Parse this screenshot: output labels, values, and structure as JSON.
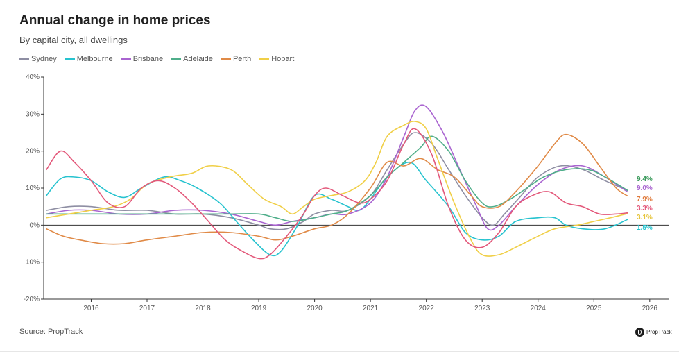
{
  "header": {
    "title": "Annual change in home prices",
    "subtitle": "By capital city, all dwellings"
  },
  "footer": {
    "source": "Source: PropTrack",
    "brand": "PropTrack",
    "brand_icon": "proptrack-logo-icon"
  },
  "chart_data": {
    "type": "line",
    "title": "Annual change in home prices",
    "subtitle": "By capital city, all dwellings",
    "xlabel": "",
    "ylabel": "",
    "xlim": [
      2015.15,
      2026.35
    ],
    "ylim": [
      -20,
      40
    ],
    "y_ticks": [
      -20,
      -10,
      0,
      10,
      20,
      30,
      40
    ],
    "y_tick_labels": [
      "-20%",
      "-10%",
      "0%",
      "10%",
      "20%",
      "30%",
      "40%"
    ],
    "x_ticks": [
      2016,
      2017,
      2018,
      2019,
      2020,
      2021,
      2022,
      2023,
      2024,
      2025,
      2026
    ],
    "x_tick_labels": [
      "2016",
      "2017",
      "2018",
      "2019",
      "2020",
      "2021",
      "2022",
      "2023",
      "2024",
      "2025",
      "2026"
    ],
    "grid": false,
    "zero_line": true,
    "legend_position": "top-left",
    "series": [
      {
        "name": "Sydney",
        "color": "#8e8ea3",
        "points": [
          [
            2015.2,
            4
          ],
          [
            2015.6,
            5
          ],
          [
            2016.0,
            5
          ],
          [
            2016.5,
            4
          ],
          [
            2017.0,
            4
          ],
          [
            2017.5,
            3
          ],
          [
            2018.0,
            3
          ],
          [
            2018.5,
            2
          ],
          [
            2019.0,
            0
          ],
          [
            2019.2,
            -1
          ],
          [
            2019.5,
            -1
          ],
          [
            2019.8,
            1
          ],
          [
            2020.0,
            3
          ],
          [
            2020.3,
            4
          ],
          [
            2020.6,
            4
          ],
          [
            2021.0,
            8
          ],
          [
            2021.3,
            15
          ],
          [
            2021.6,
            22
          ],
          [
            2021.8,
            25
          ],
          [
            2022.1,
            22
          ],
          [
            2022.4,
            15
          ],
          [
            2022.7,
            8
          ],
          [
            2023.0,
            2
          ],
          [
            2023.2,
            0
          ],
          [
            2023.4,
            3
          ],
          [
            2023.7,
            8
          ],
          [
            2024.0,
            13
          ],
          [
            2024.4,
            16
          ],
          [
            2024.8,
            15
          ],
          [
            2025.2,
            12
          ],
          [
            2025.6,
            9.4
          ]
        ],
        "end_label": "9.4%",
        "end_label_color": "#3a9a5b"
      },
      {
        "name": "Melbourne",
        "color": "#27c3cf",
        "points": [
          [
            2015.2,
            8
          ],
          [
            2015.45,
            12.5
          ],
          [
            2015.7,
            13
          ],
          [
            2016.0,
            12
          ],
          [
            2016.3,
            9
          ],
          [
            2016.6,
            7.5
          ],
          [
            2016.9,
            10
          ],
          [
            2017.3,
            13
          ],
          [
            2017.6,
            12
          ],
          [
            2017.9,
            10
          ],
          [
            2018.3,
            6
          ],
          [
            2018.6,
            1
          ],
          [
            2018.9,
            -4
          ],
          [
            2019.2,
            -8
          ],
          [
            2019.4,
            -7
          ],
          [
            2019.7,
            0
          ],
          [
            2020.0,
            8
          ],
          [
            2020.3,
            7
          ],
          [
            2020.6,
            5
          ],
          [
            2020.8,
            4
          ],
          [
            2021.0,
            7
          ],
          [
            2021.3,
            13
          ],
          [
            2021.7,
            17
          ],
          [
            2022.0,
            12
          ],
          [
            2022.4,
            5
          ],
          [
            2022.7,
            -2
          ],
          [
            2023.0,
            -4
          ],
          [
            2023.3,
            -3
          ],
          [
            2023.6,
            1
          ],
          [
            2024.0,
            2
          ],
          [
            2024.3,
            2
          ],
          [
            2024.5,
            0
          ],
          [
            2024.8,
            -1
          ],
          [
            2025.2,
            -1
          ],
          [
            2025.6,
            1.5
          ]
        ],
        "end_label": "1.5%",
        "end_label_color": "#27c3cf"
      },
      {
        "name": "Brisbane",
        "color": "#a964d0",
        "points": [
          [
            2015.2,
            3
          ],
          [
            2015.6,
            4
          ],
          [
            2016.0,
            4
          ],
          [
            2016.5,
            3
          ],
          [
            2017.0,
            3
          ],
          [
            2017.5,
            4
          ],
          [
            2018.0,
            4
          ],
          [
            2018.5,
            3
          ],
          [
            2019.0,
            1
          ],
          [
            2019.3,
            0
          ],
          [
            2019.6,
            1
          ],
          [
            2020.0,
            2
          ],
          [
            2020.3,
            3
          ],
          [
            2020.6,
            3
          ],
          [
            2021.0,
            6
          ],
          [
            2021.3,
            13
          ],
          [
            2021.6,
            24
          ],
          [
            2021.8,
            31
          ],
          [
            2022.0,
            32
          ],
          [
            2022.3,
            25
          ],
          [
            2022.6,
            15
          ],
          [
            2022.9,
            5
          ],
          [
            2023.1,
            -1
          ],
          [
            2023.3,
            0
          ],
          [
            2023.6,
            5
          ],
          [
            2024.0,
            11
          ],
          [
            2024.4,
            15
          ],
          [
            2024.8,
            16
          ],
          [
            2025.2,
            13
          ],
          [
            2025.6,
            9.0
          ]
        ],
        "end_label": "9.0%",
        "end_label_color": "#a964d0"
      },
      {
        "name": "Adelaide",
        "color": "#4fae8a",
        "points": [
          [
            2015.2,
            3
          ],
          [
            2015.6,
            3
          ],
          [
            2016.0,
            3
          ],
          [
            2016.5,
            3
          ],
          [
            2017.0,
            3
          ],
          [
            2017.5,
            3
          ],
          [
            2018.0,
            3
          ],
          [
            2018.5,
            3
          ],
          [
            2019.0,
            3
          ],
          [
            2019.3,
            2
          ],
          [
            2019.6,
            1
          ],
          [
            2020.0,
            2
          ],
          [
            2020.3,
            3
          ],
          [
            2020.6,
            4
          ],
          [
            2021.0,
            8
          ],
          [
            2021.3,
            13
          ],
          [
            2021.6,
            17
          ],
          [
            2021.9,
            21
          ],
          [
            2022.1,
            24
          ],
          [
            2022.4,
            20
          ],
          [
            2022.7,
            12
          ],
          [
            2023.0,
            6
          ],
          [
            2023.2,
            5
          ],
          [
            2023.5,
            7
          ],
          [
            2023.8,
            10
          ],
          [
            2024.1,
            13
          ],
          [
            2024.5,
            15
          ],
          [
            2024.9,
            15
          ],
          [
            2025.2,
            13
          ],
          [
            2025.6,
            9.4
          ]
        ]
      },
      {
        "name": "Perth",
        "color": "#e08a47",
        "points": [
          [
            2015.2,
            -1
          ],
          [
            2015.5,
            -3
          ],
          [
            2015.8,
            -4
          ],
          [
            2016.2,
            -5
          ],
          [
            2016.6,
            -5
          ],
          [
            2017.0,
            -4
          ],
          [
            2017.5,
            -3
          ],
          [
            2018.0,
            -2
          ],
          [
            2018.5,
            -2
          ],
          [
            2019.0,
            -3
          ],
          [
            2019.3,
            -4
          ],
          [
            2019.6,
            -3
          ],
          [
            2020.0,
            -1
          ],
          [
            2020.3,
            0
          ],
          [
            2020.6,
            3
          ],
          [
            2021.0,
            10
          ],
          [
            2021.3,
            17
          ],
          [
            2021.6,
            16
          ],
          [
            2021.9,
            18
          ],
          [
            2022.2,
            15
          ],
          [
            2022.5,
            13
          ],
          [
            2022.8,
            8
          ],
          [
            2023.0,
            5
          ],
          [
            2023.3,
            5
          ],
          [
            2023.6,
            9
          ],
          [
            2024.0,
            16
          ],
          [
            2024.3,
            22
          ],
          [
            2024.5,
            24.5
          ],
          [
            2024.8,
            22
          ],
          [
            2025.1,
            16
          ],
          [
            2025.4,
            10
          ],
          [
            2025.6,
            7.9
          ]
        ],
        "end_label": "7.9%",
        "end_label_color": "#e07b3c"
      },
      {
        "name": "Hobart",
        "color": "#f0cf47",
        "points": [
          [
            2015.2,
            2
          ],
          [
            2015.6,
            3
          ],
          [
            2016.0,
            4
          ],
          [
            2016.4,
            5
          ],
          [
            2016.7,
            7
          ],
          [
            2017.0,
            11
          ],
          [
            2017.4,
            13
          ],
          [
            2017.8,
            14
          ],
          [
            2018.1,
            16
          ],
          [
            2018.5,
            15
          ],
          [
            2018.8,
            11
          ],
          [
            2019.1,
            7
          ],
          [
            2019.4,
            5
          ],
          [
            2019.6,
            3
          ],
          [
            2019.8,
            5
          ],
          [
            2020.0,
            7
          ],
          [
            2020.3,
            8
          ],
          [
            2020.6,
            9
          ],
          [
            2020.9,
            12
          ],
          [
            2021.1,
            17
          ],
          [
            2021.3,
            24
          ],
          [
            2021.6,
            27
          ],
          [
            2021.8,
            28
          ],
          [
            2022.0,
            26
          ],
          [
            2022.2,
            18
          ],
          [
            2022.5,
            6
          ],
          [
            2022.8,
            -4
          ],
          [
            2023.0,
            -8
          ],
          [
            2023.3,
            -8
          ],
          [
            2023.6,
            -6
          ],
          [
            2024.0,
            -3
          ],
          [
            2024.3,
            -1
          ],
          [
            2024.7,
            0
          ],
          [
            2025.0,
            1
          ],
          [
            2025.3,
            2
          ],
          [
            2025.6,
            3.1
          ]
        ],
        "end_label": "3.1%",
        "end_label_color": "#e6c43a"
      },
      {
        "name": "Pink",
        "color": "#e3587a",
        "legend": false,
        "points": [
          [
            2015.2,
            15
          ],
          [
            2015.45,
            20
          ],
          [
            2015.7,
            17
          ],
          [
            2016.0,
            12
          ],
          [
            2016.3,
            6
          ],
          [
            2016.6,
            5
          ],
          [
            2016.9,
            10
          ],
          [
            2017.2,
            12
          ],
          [
            2017.5,
            10
          ],
          [
            2017.8,
            6
          ],
          [
            2018.1,
            1
          ],
          [
            2018.4,
            -4
          ],
          [
            2018.7,
            -7
          ],
          [
            2019.0,
            -9
          ],
          [
            2019.2,
            -8
          ],
          [
            2019.5,
            -3
          ],
          [
            2019.8,
            3
          ],
          [
            2020.0,
            8
          ],
          [
            2020.2,
            10
          ],
          [
            2020.5,
            8
          ],
          [
            2020.8,
            6
          ],
          [
            2021.0,
            7
          ],
          [
            2021.3,
            12
          ],
          [
            2021.6,
            22
          ],
          [
            2021.8,
            26
          ],
          [
            2022.1,
            19
          ],
          [
            2022.4,
            5
          ],
          [
            2022.7,
            -4
          ],
          [
            2023.0,
            -6
          ],
          [
            2023.3,
            -2
          ],
          [
            2023.6,
            5
          ],
          [
            2023.9,
            8
          ],
          [
            2024.2,
            9
          ],
          [
            2024.5,
            6
          ],
          [
            2024.8,
            5
          ],
          [
            2025.1,
            3
          ],
          [
            2025.4,
            3
          ],
          [
            2025.6,
            3.3
          ]
        ],
        "end_label": "3.3%",
        "end_label_color": "#e3587a"
      }
    ]
  }
}
